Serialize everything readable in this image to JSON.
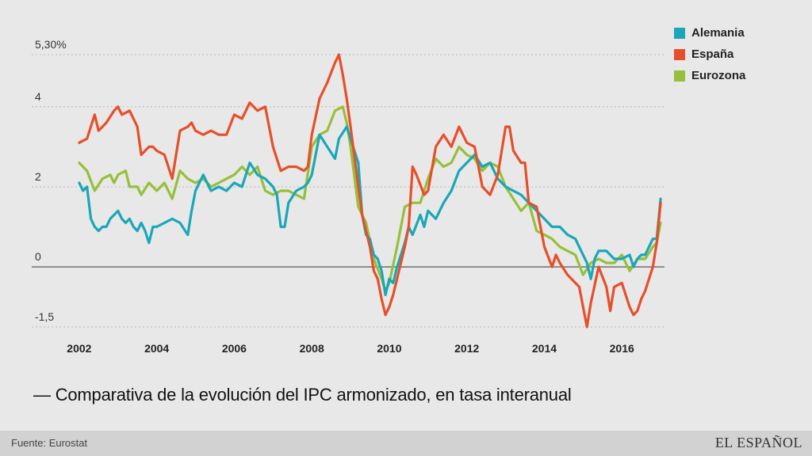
{
  "caption": "— Comparativa de la evolución del IPC armonizado, en tasa interanual",
  "footer": {
    "source": "Fuente: Eurostat",
    "logo": "EL ESPAÑOL"
  },
  "chart_data": {
    "type": "line",
    "ylim": [
      -1.5,
      5.3
    ],
    "ytick_labels": [
      {
        "value": 5.3,
        "label": "5,30%"
      },
      {
        "value": 4,
        "label": "4"
      },
      {
        "value": 2,
        "label": "2"
      },
      {
        "value": 0,
        "label": "0"
      },
      {
        "value": -1.5,
        "label": "-1,5"
      }
    ],
    "xlim": [
      2001.9,
      2017.1
    ],
    "xtick_labels": [
      {
        "value": 2002,
        "label": "2002"
      },
      {
        "value": 2004,
        "label": "2004"
      },
      {
        "value": 2006,
        "label": "2006"
      },
      {
        "value": 2008,
        "label": "2008"
      },
      {
        "value": 2010,
        "label": "2010"
      },
      {
        "value": 2012,
        "label": "2012"
      },
      {
        "value": 2014,
        "label": "2014"
      },
      {
        "value": 2016,
        "label": "2016"
      }
    ],
    "grid": "horizontal-dotted",
    "legend_position": "top-right",
    "series": [
      {
        "name": "Alemania",
        "color": "#1aa7b8",
        "points": [
          [
            2002.0,
            2.1
          ],
          [
            2002.1,
            1.9
          ],
          [
            2002.2,
            2.0
          ],
          [
            2002.3,
            1.2
          ],
          [
            2002.4,
            1.0
          ],
          [
            2002.5,
            0.9
          ],
          [
            2002.6,
            1.0
          ],
          [
            2002.7,
            1.0
          ],
          [
            2002.8,
            1.2
          ],
          [
            2002.9,
            1.3
          ],
          [
            2003.0,
            1.4
          ],
          [
            2003.1,
            1.2
          ],
          [
            2003.2,
            1.1
          ],
          [
            2003.3,
            1.2
          ],
          [
            2003.4,
            1.0
          ],
          [
            2003.5,
            0.9
          ],
          [
            2003.6,
            1.1
          ],
          [
            2003.7,
            0.9
          ],
          [
            2003.8,
            0.6
          ],
          [
            2003.9,
            1.0
          ],
          [
            2004.0,
            1.0
          ],
          [
            2004.2,
            1.1
          ],
          [
            2004.4,
            1.2
          ],
          [
            2004.6,
            1.1
          ],
          [
            2004.8,
            0.8
          ],
          [
            2004.9,
            1.4
          ],
          [
            2005.0,
            1.9
          ],
          [
            2005.2,
            2.3
          ],
          [
            2005.4,
            1.9
          ],
          [
            2005.6,
            2.0
          ],
          [
            2005.8,
            1.9
          ],
          [
            2006.0,
            2.1
          ],
          [
            2006.2,
            2.0
          ],
          [
            2006.4,
            2.6
          ],
          [
            2006.6,
            2.3
          ],
          [
            2006.8,
            2.2
          ],
          [
            2007.0,
            2.0
          ],
          [
            2007.1,
            1.8
          ],
          [
            2007.2,
            1.0
          ],
          [
            2007.3,
            1.0
          ],
          [
            2007.4,
            1.6
          ],
          [
            2007.6,
            1.9
          ],
          [
            2007.8,
            2.0
          ],
          [
            2007.9,
            2.1
          ],
          [
            2008.0,
            2.3
          ],
          [
            2008.1,
            2.8
          ],
          [
            2008.2,
            3.3
          ],
          [
            2008.4,
            3.0
          ],
          [
            2008.6,
            2.7
          ],
          [
            2008.7,
            3.2
          ],
          [
            2008.9,
            3.5
          ],
          [
            2009.0,
            3.2
          ],
          [
            2009.2,
            2.6
          ],
          [
            2009.3,
            1.3
          ],
          [
            2009.4,
            0.8
          ],
          [
            2009.5,
            0.7
          ],
          [
            2009.6,
            0.3
          ],
          [
            2009.7,
            0.2
          ],
          [
            2009.8,
            -0.1
          ],
          [
            2009.9,
            -0.7
          ],
          [
            2010.0,
            -0.3
          ],
          [
            2010.1,
            -0.4
          ],
          [
            2010.2,
            0.0
          ],
          [
            2010.4,
            0.6
          ],
          [
            2010.5,
            1.0
          ],
          [
            2010.6,
            0.8
          ],
          [
            2010.8,
            1.3
          ],
          [
            2010.9,
            1.0
          ],
          [
            2011.0,
            1.4
          ],
          [
            2011.2,
            1.2
          ],
          [
            2011.4,
            1.6
          ],
          [
            2011.6,
            1.9
          ],
          [
            2011.8,
            2.4
          ],
          [
            2012.0,
            2.6
          ],
          [
            2012.2,
            2.8
          ],
          [
            2012.4,
            2.5
          ],
          [
            2012.6,
            2.6
          ],
          [
            2012.8,
            2.2
          ],
          [
            2013.0,
            2.0
          ],
          [
            2013.2,
            1.9
          ],
          [
            2013.4,
            1.8
          ],
          [
            2013.6,
            1.6
          ],
          [
            2013.8,
            1.4
          ],
          [
            2014.0,
            1.2
          ],
          [
            2014.2,
            1.0
          ],
          [
            2014.4,
            1.0
          ],
          [
            2014.6,
            0.8
          ],
          [
            2014.8,
            0.7
          ],
          [
            2015.0,
            0.3
          ],
          [
            2015.1,
            0.1
          ],
          [
            2015.2,
            -0.3
          ],
          [
            2015.3,
            0.2
          ],
          [
            2015.4,
            0.4
          ],
          [
            2015.6,
            0.4
          ],
          [
            2015.8,
            0.2
          ],
          [
            2016.0,
            0.2
          ],
          [
            2016.2,
            0.3
          ],
          [
            2016.3,
            0.0
          ],
          [
            2016.4,
            0.2
          ],
          [
            2016.5,
            0.3
          ],
          [
            2016.6,
            0.3
          ],
          [
            2016.8,
            0.7
          ],
          [
            2016.9,
            0.7
          ],
          [
            2017.0,
            1.7
          ]
        ]
      },
      {
        "name": "España",
        "color": "#e5502a",
        "points": [
          [
            2002.0,
            3.1
          ],
          [
            2002.2,
            3.2
          ],
          [
            2002.4,
            3.8
          ],
          [
            2002.5,
            3.4
          ],
          [
            2002.7,
            3.6
          ],
          [
            2002.9,
            3.9
          ],
          [
            2003.0,
            4.0
          ],
          [
            2003.1,
            3.8
          ],
          [
            2003.3,
            3.9
          ],
          [
            2003.5,
            3.5
          ],
          [
            2003.6,
            2.8
          ],
          [
            2003.8,
            3.0
          ],
          [
            2003.9,
            3.0
          ],
          [
            2004.0,
            2.9
          ],
          [
            2004.2,
            2.8
          ],
          [
            2004.4,
            2.2
          ],
          [
            2004.6,
            3.4
          ],
          [
            2004.8,
            3.5
          ],
          [
            2004.9,
            3.6
          ],
          [
            2005.0,
            3.4
          ],
          [
            2005.2,
            3.3
          ],
          [
            2005.4,
            3.4
          ],
          [
            2005.6,
            3.3
          ],
          [
            2005.8,
            3.3
          ],
          [
            2006.0,
            3.8
          ],
          [
            2006.2,
            3.7
          ],
          [
            2006.4,
            4.1
          ],
          [
            2006.6,
            3.9
          ],
          [
            2006.8,
            4.0
          ],
          [
            2007.0,
            3.0
          ],
          [
            2007.2,
            2.4
          ],
          [
            2007.4,
            2.5
          ],
          [
            2007.6,
            2.5
          ],
          [
            2007.8,
            2.4
          ],
          [
            2007.9,
            2.5
          ],
          [
            2008.0,
            3.3
          ],
          [
            2008.2,
            4.2
          ],
          [
            2008.4,
            4.6
          ],
          [
            2008.6,
            5.1
          ],
          [
            2008.7,
            5.3
          ],
          [
            2008.8,
            4.8
          ],
          [
            2008.9,
            4.2
          ],
          [
            2009.0,
            3.5
          ],
          [
            2009.2,
            2.0
          ],
          [
            2009.3,
            1.3
          ],
          [
            2009.4,
            0.9
          ],
          [
            2009.5,
            0.5
          ],
          [
            2009.6,
            -0.1
          ],
          [
            2009.7,
            -0.3
          ],
          [
            2009.8,
            -0.8
          ],
          [
            2009.9,
            -1.2
          ],
          [
            2010.0,
            -1.0
          ],
          [
            2010.1,
            -0.7
          ],
          [
            2010.2,
            -0.3
          ],
          [
            2010.4,
            0.5
          ],
          [
            2010.5,
            1.0
          ],
          [
            2010.6,
            2.5
          ],
          [
            2010.7,
            2.3
          ],
          [
            2010.9,
            1.8
          ],
          [
            2011.0,
            1.9
          ],
          [
            2011.2,
            3.0
          ],
          [
            2011.4,
            3.3
          ],
          [
            2011.6,
            3.0
          ],
          [
            2011.8,
            3.5
          ],
          [
            2012.0,
            3.1
          ],
          [
            2012.2,
            3.0
          ],
          [
            2012.4,
            2.0
          ],
          [
            2012.6,
            1.8
          ],
          [
            2012.8,
            2.3
          ],
          [
            2013.0,
            3.5
          ],
          [
            2013.1,
            3.5
          ],
          [
            2013.2,
            2.9
          ],
          [
            2013.4,
            2.6
          ],
          [
            2013.5,
            2.6
          ],
          [
            2013.6,
            1.6
          ],
          [
            2013.8,
            1.5
          ],
          [
            2014.0,
            0.5
          ],
          [
            2014.2,
            0.0
          ],
          [
            2014.3,
            0.3
          ],
          [
            2014.4,
            0.1
          ],
          [
            2014.6,
            -0.2
          ],
          [
            2014.8,
            -0.4
          ],
          [
            2014.9,
            -0.5
          ],
          [
            2015.0,
            -1.0
          ],
          [
            2015.1,
            -1.5
          ],
          [
            2015.2,
            -0.9
          ],
          [
            2015.4,
            0.0
          ],
          [
            2015.6,
            -0.5
          ],
          [
            2015.7,
            -1.1
          ],
          [
            2015.8,
            -0.5
          ],
          [
            2016.0,
            -0.4
          ],
          [
            2016.2,
            -1.0
          ],
          [
            2016.3,
            -1.2
          ],
          [
            2016.4,
            -1.1
          ],
          [
            2016.5,
            -0.8
          ],
          [
            2016.6,
            -0.6
          ],
          [
            2016.8,
            0.0
          ],
          [
            2016.9,
            0.6
          ],
          [
            2017.0,
            1.6
          ]
        ]
      },
      {
        "name": "Eurozona",
        "color": "#96c03a",
        "points": [
          [
            2002.0,
            2.6
          ],
          [
            2002.2,
            2.4
          ],
          [
            2002.4,
            1.9
          ],
          [
            2002.6,
            2.2
          ],
          [
            2002.8,
            2.3
          ],
          [
            2002.9,
            2.1
          ],
          [
            2003.0,
            2.3
          ],
          [
            2003.2,
            2.4
          ],
          [
            2003.3,
            2.0
          ],
          [
            2003.5,
            2.0
          ],
          [
            2003.6,
            1.8
          ],
          [
            2003.8,
            2.1
          ],
          [
            2004.0,
            1.9
          ],
          [
            2004.2,
            2.1
          ],
          [
            2004.4,
            1.7
          ],
          [
            2004.6,
            2.4
          ],
          [
            2004.8,
            2.2
          ],
          [
            2005.0,
            2.1
          ],
          [
            2005.2,
            2.2
          ],
          [
            2005.4,
            2.0
          ],
          [
            2005.6,
            2.1
          ],
          [
            2005.8,
            2.2
          ],
          [
            2006.0,
            2.3
          ],
          [
            2006.2,
            2.5
          ],
          [
            2006.4,
            2.3
          ],
          [
            2006.6,
            2.5
          ],
          [
            2006.8,
            1.9
          ],
          [
            2007.0,
            1.8
          ],
          [
            2007.2,
            1.9
          ],
          [
            2007.4,
            1.9
          ],
          [
            2007.6,
            1.8
          ],
          [
            2007.8,
            1.7
          ],
          [
            2008.0,
            3.0
          ],
          [
            2008.2,
            3.3
          ],
          [
            2008.4,
            3.4
          ],
          [
            2008.6,
            3.9
          ],
          [
            2008.8,
            4.0
          ],
          [
            2008.9,
            3.6
          ],
          [
            2009.0,
            3.0
          ],
          [
            2009.2,
            1.5
          ],
          [
            2009.4,
            1.1
          ],
          [
            2009.6,
            0.2
          ],
          [
            2009.8,
            -0.3
          ],
          [
            2009.9,
            -0.6
          ],
          [
            2010.0,
            -0.4
          ],
          [
            2010.2,
            0.5
          ],
          [
            2010.4,
            1.5
          ],
          [
            2010.6,
            1.6
          ],
          [
            2010.8,
            1.6
          ],
          [
            2011.0,
            2.2
          ],
          [
            2011.2,
            2.7
          ],
          [
            2011.4,
            2.5
          ],
          [
            2011.6,
            2.6
          ],
          [
            2011.8,
            3.0
          ],
          [
            2012.0,
            2.8
          ],
          [
            2012.2,
            2.7
          ],
          [
            2012.4,
            2.4
          ],
          [
            2012.6,
            2.6
          ],
          [
            2012.8,
            2.5
          ],
          [
            2013.0,
            2.0
          ],
          [
            2013.2,
            1.7
          ],
          [
            2013.4,
            1.4
          ],
          [
            2013.6,
            1.6
          ],
          [
            2013.8,
            0.9
          ],
          [
            2014.0,
            0.8
          ],
          [
            2014.2,
            0.7
          ],
          [
            2014.4,
            0.5
          ],
          [
            2014.6,
            0.4
          ],
          [
            2014.8,
            0.3
          ],
          [
            2015.0,
            -0.2
          ],
          [
            2015.2,
            0.1
          ],
          [
            2015.4,
            0.2
          ],
          [
            2015.6,
            0.1
          ],
          [
            2015.8,
            0.1
          ],
          [
            2016.0,
            0.3
          ],
          [
            2016.2,
            -0.1
          ],
          [
            2016.4,
            0.2
          ],
          [
            2016.6,
            0.2
          ],
          [
            2016.8,
            0.5
          ],
          [
            2016.9,
            0.6
          ],
          [
            2017.0,
            1.1
          ]
        ]
      }
    ]
  }
}
